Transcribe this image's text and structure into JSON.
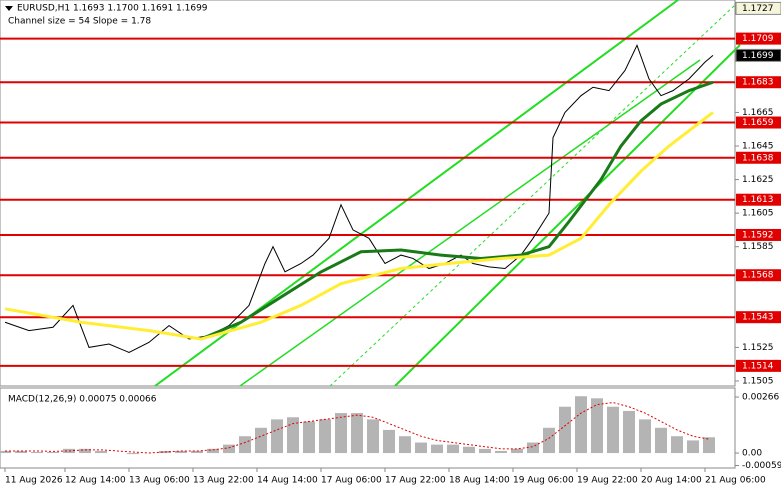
{
  "chart_data": {
    "type": "line",
    "title": "EURUSD,H1  1.1693 1.1700 1.1691 1.1699",
    "subtitle": "Channel size = 54 Slope = 1.78",
    "xlim": [
      -1.25,
      182.5
    ],
    "xticks": [
      {
        "value": 0,
        "label": "11 Aug 2026"
      },
      {
        "value": 15,
        "label": "12 Aug 14:00"
      },
      {
        "value": 31,
        "label": "13 Aug 06:00"
      },
      {
        "value": 47,
        "label": "13 Aug 22:00"
      },
      {
        "value": 63,
        "label": "14 Aug 14:00"
      },
      {
        "value": 79,
        "label": "17 Aug 06:00"
      },
      {
        "value": 95,
        "label": "17 Aug 22:00"
      },
      {
        "value": 111,
        "label": "18 Aug 14:00"
      },
      {
        "value": 127,
        "label": "19 Aug 06:00"
      },
      {
        "value": 143,
        "label": "19 Aug 22:00"
      },
      {
        "value": 159,
        "label": "20 Aug 14:00"
      },
      {
        "value": 175,
        "label": "21 Aug 06:00"
      }
    ],
    "ylim": [
      1.1502,
      1.1732
    ],
    "yticks": [
      1.1505,
      1.1525,
      1.1585,
      1.1605,
      1.1625,
      1.1645,
      1.1665
    ],
    "levels": [
      1.1709,
      1.1683,
      1.1659,
      1.1638,
      1.1613,
      1.1592,
      1.1568,
      1.1543,
      1.1514
    ],
    "level_color": "#e00000",
    "price_markers": [
      1.1727,
      1.1699
    ],
    "series": [
      {
        "name": "EURUSD",
        "color": "#000000",
        "x": [
          0,
          6,
          12,
          17,
          21,
          26,
          31,
          36,
          41,
          46,
          51,
          56,
          61,
          65,
          67,
          70,
          74,
          77,
          81,
          84,
          87,
          91,
          95,
          99,
          102,
          106,
          110,
          114,
          117,
          121,
          125,
          129,
          132,
          136,
          137,
          140,
          144,
          147,
          151,
          155,
          158,
          161,
          164,
          167,
          171,
          175,
          177
        ],
        "values": [
          1.154,
          1.1535,
          1.1537,
          1.155,
          1.1525,
          1.1527,
          1.1522,
          1.1528,
          1.1538,
          1.153,
          1.1532,
          1.1538,
          1.155,
          1.1575,
          1.1585,
          1.157,
          1.1575,
          1.158,
          1.159,
          1.161,
          1.1595,
          1.159,
          1.1575,
          1.158,
          1.1578,
          1.1572,
          1.1575,
          1.158,
          1.1575,
          1.1573,
          1.1572,
          1.158,
          1.159,
          1.1605,
          1.165,
          1.1665,
          1.1675,
          1.168,
          1.1678,
          1.169,
          1.1705,
          1.1685,
          1.1675,
          1.1678,
          1.1685,
          1.1695,
          1.1699
        ]
      },
      {
        "color": "#1a7a1a",
        "x": [
          49,
          59,
          69,
          79,
          89,
          99,
          109,
          119,
          129,
          136,
          141,
          149,
          154,
          159,
          164,
          171,
          177
        ],
        "values": [
          1.153,
          1.154,
          1.1555,
          1.157,
          1.1582,
          1.1583,
          1.158,
          1.1578,
          1.158,
          1.1585,
          1.16,
          1.1625,
          1.1645,
          1.166,
          1.167,
          1.1678,
          1.1683
        ]
      },
      {
        "color": "#ffee33",
        "x": [
          0,
          19,
          36,
          49,
          64,
          74,
          84,
          99,
          111,
          124,
          136,
          144,
          151,
          159,
          166,
          177
        ],
        "values": [
          1.1548,
          1.154,
          1.1535,
          1.153,
          1.154,
          1.155,
          1.1563,
          1.1572,
          1.1575,
          1.1578,
          1.158,
          1.159,
          1.161,
          1.163,
          1.1645,
          1.1665
        ]
      }
    ],
    "macd": {
      "title": "MACD(12,26,9) 0.00075 0.00066",
      "y2lim": [
        -0.00071,
        0.00309
      ],
      "y2ticks": [
        0.00266,
        {
          "value": 0,
          "label": "0.00"
        },
        -0.00059
      ],
      "x": [
        0,
        4,
        8,
        12,
        16,
        20,
        24,
        28,
        32,
        36,
        40,
        44,
        48,
        52,
        56,
        60,
        64,
        68,
        72,
        76,
        80,
        84,
        88,
        92,
        96,
        100,
        104,
        108,
        112,
        116,
        120,
        124,
        128,
        132,
        136,
        140,
        144,
        148,
        152,
        156,
        160,
        164,
        168,
        172,
        176
      ],
      "histogram": [
        0.0001,
        0.0001,
        5e-05,
        5e-05,
        0.0002,
        0.0002,
        0.0001,
        0.0,
        -5e-05,
        0.0,
        0.0001,
        0.0001,
        0.0001,
        0.0002,
        0.0004,
        0.0008,
        0.0012,
        0.0016,
        0.0017,
        0.0015,
        0.0016,
        0.0019,
        0.0019,
        0.0016,
        0.0011,
        0.0008,
        0.0005,
        0.0004,
        0.0004,
        0.0003,
        0.0002,
        0.0001,
        0.0002,
        0.0005,
        0.0012,
        0.0022,
        0.0027,
        0.0026,
        0.0022,
        0.002,
        0.0016,
        0.0012,
        0.0008,
        0.0006,
        0.00075
      ],
      "signal": [
        0.0001,
        0.0001,
        0.0001,
        8e-05,
        0.0001,
        0.00015,
        0.00015,
        0.0001,
        5e-05,
        0.0,
        5e-05,
        0.0001,
        0.0001,
        0.00015,
        0.00025,
        0.0005,
        0.0008,
        0.0011,
        0.0014,
        0.0015,
        0.0016,
        0.0017,
        0.0018,
        0.0017,
        0.0014,
        0.0011,
        0.0008,
        0.0006,
        0.0005,
        0.0004,
        0.0003,
        0.0002,
        0.0002,
        0.0003,
        0.0007,
        0.0013,
        0.0019,
        0.0023,
        0.0024,
        0.0022,
        0.0019,
        0.0015,
        0.0011,
        0.0008,
        0.00066
      ],
      "histogram_color": "#b4b4b4",
      "signal_color": "#e00000"
    }
  }
}
